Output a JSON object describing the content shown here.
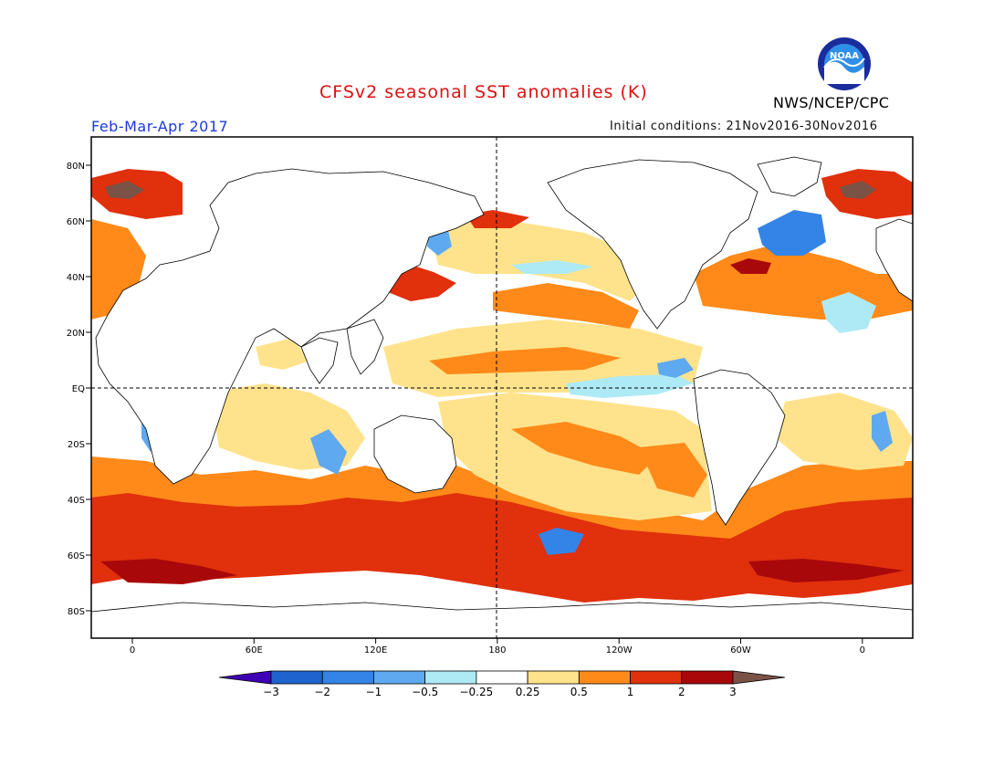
{
  "header": {
    "title": "CFSv2 seasonal SST anomalies (K)",
    "season": "Feb-Mar-Apr 2017",
    "initial_conditions": "Initial conditions: 21Nov2016-30Nov2016",
    "organization": "NWS/NCEP/CPC",
    "logo_text": "NOAA"
  },
  "colors": {
    "title": "#dd1111",
    "season": "#1a3adf",
    "land_fill": "#ffffff",
    "coast": "#000000"
  },
  "map": {
    "lat_labels": [
      "80N",
      "60N",
      "40N",
      "20N",
      "EQ",
      "20S",
      "40S",
      "60S",
      "80S"
    ],
    "lon_labels": [
      "0",
      "60E",
      "120E",
      "180",
      "120W",
      "60W",
      "0"
    ]
  },
  "colorbar": {
    "labels": [
      "−3",
      "−2",
      "−1",
      "−0.5",
      "−0.25",
      "0.25",
      "0.5",
      "1",
      "2",
      "3"
    ],
    "colors": [
      "#3f00b3",
      "#1f63cf",
      "#3384e6",
      "#5fa9f0",
      "#aeeaf5",
      "#ffffff",
      "#ffe38c",
      "#ff8a19",
      "#e0300c",
      "#a8080a",
      "#7a5246"
    ]
  },
  "regions": [
    {
      "name": "southern-ocean-band",
      "category": "1 to 2"
    },
    {
      "name": "north-atlantic-warm",
      "category": "2 to 3"
    },
    {
      "name": "northwest-atlantic-cool",
      "category": "-1 to -0.5"
    },
    {
      "name": "north-pacific-warm-band",
      "category": "0.5 to 1"
    },
    {
      "name": "equatorial-east-pacific-cool",
      "category": "-0.5 to -0.25"
    },
    {
      "name": "south-pacific-warm",
      "category": "0.5 to 1"
    }
  ]
}
